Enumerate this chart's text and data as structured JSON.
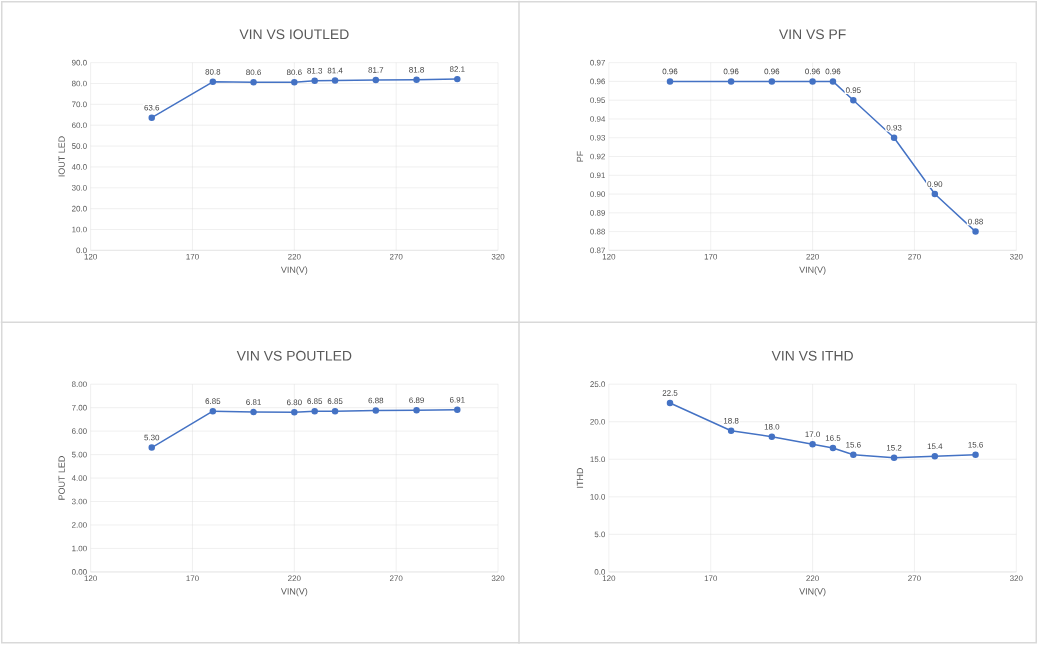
{
  "chart_data": [
    {
      "type": "line",
      "title": "VIN VS IOUTLED",
      "xlabel": "VIN(V)",
      "ylabel": "IOUT LED",
      "color": "#4472c4",
      "marker": "circle",
      "grid": true,
      "x": [
        150,
        180,
        200,
        220,
        230,
        240,
        260,
        280,
        300
      ],
      "values": [
        63.6,
        80.8,
        80.6,
        80.6,
        81.3,
        81.4,
        81.7,
        81.8,
        82.1
      ],
      "value_labels": [
        "63.6",
        "80.8",
        "80.6",
        "80.6",
        "81.3",
        "81.4",
        "81.7",
        "81.8",
        "82.1"
      ],
      "xlim": [
        120,
        320
      ],
      "xticks": [
        120,
        170,
        220,
        270,
        320
      ],
      "ylim": [
        0,
        90
      ],
      "yticks": [
        {
          "value": 0,
          "label": "0.0"
        },
        {
          "value": 10,
          "label": "10.0"
        },
        {
          "value": 20,
          "label": "20.0"
        },
        {
          "value": 30,
          "label": "30.0"
        },
        {
          "value": 40,
          "label": "40.0"
        },
        {
          "value": 50,
          "label": "50.0"
        },
        {
          "value": 60,
          "label": "60.0"
        },
        {
          "value": 70,
          "label": "70.0"
        },
        {
          "value": 80,
          "label": "80.0"
        },
        {
          "value": 90,
          "label": "90.0"
        }
      ]
    },
    {
      "type": "line",
      "title": "VIN VS PF",
      "xlabel": "VIN(V)",
      "ylabel": "PF",
      "color": "#4472c4",
      "marker": "circle",
      "grid": true,
      "x": [
        150,
        180,
        200,
        220,
        230,
        240,
        260,
        280,
        300
      ],
      "values": [
        0.96,
        0.96,
        0.96,
        0.96,
        0.96,
        0.95,
        0.93,
        0.9,
        0.88
      ],
      "value_labels": [
        "0.96",
        "0.96",
        "0.96",
        "0.96",
        "0.96",
        "0.95",
        "0.93",
        "0.90",
        "0.88"
      ],
      "xlim": [
        120,
        320
      ],
      "xticks": [
        120,
        170,
        220,
        270,
        320
      ],
      "ylim": [
        0.87,
        0.97
      ],
      "yticks": [
        0.87,
        0.88,
        0.89,
        {
          "value": 0.9,
          "label": "0.90"
        },
        0.91,
        0.92,
        0.93,
        0.94,
        0.95,
        0.96,
        0.97
      ]
    },
    {
      "type": "line",
      "title": "VIN VS POUTLED",
      "xlabel": "VIN(V)",
      "ylabel": "POUT LED",
      "color": "#4472c4",
      "marker": "circle",
      "grid": true,
      "x": [
        150,
        180,
        200,
        220,
        230,
        240,
        260,
        280,
        300
      ],
      "values": [
        5.3,
        6.85,
        6.81,
        6.8,
        6.85,
        6.85,
        6.88,
        6.89,
        6.91
      ],
      "value_labels": [
        "5.30",
        "6.85",
        "6.81",
        "6.80",
        "6.85",
        "6.85",
        "6.88",
        "6.89",
        "6.91"
      ],
      "xlim": [
        120,
        320
      ],
      "xticks": [
        120,
        170,
        220,
        270,
        320
      ],
      "ylim": [
        0,
        8
      ],
      "yticks": [
        {
          "value": 0,
          "label": "0.00"
        },
        {
          "value": 1,
          "label": "1.00"
        },
        {
          "value": 2,
          "label": "2.00"
        },
        {
          "value": 3,
          "label": "3.00"
        },
        {
          "value": 4,
          "label": "4.00"
        },
        {
          "value": 5,
          "label": "5.00"
        },
        {
          "value": 6,
          "label": "6.00"
        },
        {
          "value": 7,
          "label": "7.00"
        },
        {
          "value": 8,
          "label": "8.00"
        }
      ]
    },
    {
      "type": "line",
      "title": "VIN VS ITHD",
      "xlabel": "VIN(V)",
      "ylabel": "ITHD",
      "color": "#4472c4",
      "marker": "circle",
      "grid": true,
      "x": [
        150,
        180,
        200,
        220,
        230,
        240,
        260,
        280,
        300
      ],
      "values": [
        22.5,
        18.8,
        18.0,
        17.0,
        16.5,
        15.6,
        15.2,
        15.4,
        15.6
      ],
      "value_labels": [
        "22.5",
        "18.8",
        "18.0",
        "17.0",
        "16.5",
        "15.6",
        "15.2",
        "15.4",
        "15.6"
      ],
      "xlim": [
        120,
        320
      ],
      "xticks": [
        120,
        170,
        220,
        270,
        320
      ],
      "ylim": [
        0,
        25
      ],
      "yticks": [
        {
          "value": 0,
          "label": "0.0"
        },
        {
          "value": 5,
          "label": "5.0"
        },
        {
          "value": 10,
          "label": "10.0"
        },
        {
          "value": 15,
          "label": "15.0"
        },
        {
          "value": 20,
          "label": "20.0"
        },
        {
          "value": 25,
          "label": "25.0"
        }
      ]
    }
  ]
}
